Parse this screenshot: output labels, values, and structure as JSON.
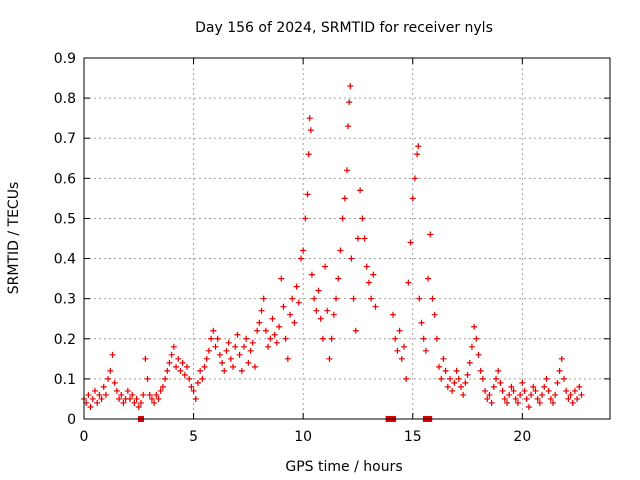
{
  "chart_data": {
    "type": "scatter",
    "title": "Day 156 of 2024, SRMTID for receiver nyls",
    "xlabel": "GPS time / hours",
    "ylabel": "SRMTID / TECUs",
    "xlim": [
      0,
      24
    ],
    "ylim": [
      0,
      0.9
    ],
    "xticks": [
      0,
      5,
      10,
      15,
      20
    ],
    "xtick_labels": [
      "0",
      "5",
      "10",
      "15",
      "20"
    ],
    "yticks": [
      0,
      0.1,
      0.2,
      0.3,
      0.4,
      0.5,
      0.6,
      0.7,
      0.8,
      0.9
    ],
    "ytick_labels": [
      "0",
      "0.1",
      "0.2",
      "0.3",
      "0.4",
      "0.5",
      "0.6",
      "0.7",
      "0.8",
      "0.9"
    ],
    "grid": true,
    "marker_color": "#e00000",
    "series": [
      {
        "name": "SRMTID",
        "marker": "plus",
        "points": [
          [
            0.0,
            0.05
          ],
          [
            0.1,
            0.04
          ],
          [
            0.2,
            0.06
          ],
          [
            0.3,
            0.03
          ],
          [
            0.4,
            0.05
          ],
          [
            0.5,
            0.07
          ],
          [
            0.6,
            0.04
          ],
          [
            0.7,
            0.06
          ],
          [
            0.8,
            0.05
          ],
          [
            0.9,
            0.08
          ],
          [
            1.0,
            0.06
          ],
          [
            1.1,
            0.1
          ],
          [
            1.2,
            0.12
          ],
          [
            1.3,
            0.16
          ],
          [
            1.4,
            0.09
          ],
          [
            1.5,
            0.07
          ],
          [
            1.6,
            0.05
          ],
          [
            1.7,
            0.06
          ],
          [
            1.8,
            0.04
          ],
          [
            1.9,
            0.05
          ],
          [
            2.0,
            0.07
          ],
          [
            2.1,
            0.05
          ],
          [
            2.2,
            0.06
          ],
          [
            2.3,
            0.04
          ],
          [
            2.4,
            0.05
          ],
          [
            2.5,
            0.03
          ],
          [
            2.6,
            0.04
          ],
          [
            2.7,
            0.06
          ],
          [
            2.8,
            0.15
          ],
          [
            2.9,
            0.1
          ],
          [
            3.0,
            0.06
          ],
          [
            3.1,
            0.05
          ],
          [
            3.2,
            0.04
          ],
          [
            3.3,
            0.06
          ],
          [
            3.4,
            0.05
          ],
          [
            3.5,
            0.07
          ],
          [
            3.6,
            0.08
          ],
          [
            3.7,
            0.1
          ],
          [
            3.8,
            0.12
          ],
          [
            3.9,
            0.14
          ],
          [
            4.0,
            0.16
          ],
          [
            4.1,
            0.18
          ],
          [
            4.2,
            0.13
          ],
          [
            4.3,
            0.15
          ],
          [
            4.4,
            0.12
          ],
          [
            4.5,
            0.14
          ],
          [
            4.6,
            0.11
          ],
          [
            4.7,
            0.13
          ],
          [
            4.8,
            0.1
          ],
          [
            4.9,
            0.08
          ],
          [
            5.0,
            0.07
          ],
          [
            5.1,
            0.05
          ],
          [
            5.2,
            0.09
          ],
          [
            5.3,
            0.12
          ],
          [
            5.4,
            0.1
          ],
          [
            5.5,
            0.13
          ],
          [
            5.6,
            0.15
          ],
          [
            5.7,
            0.17
          ],
          [
            5.8,
            0.2
          ],
          [
            5.9,
            0.22
          ],
          [
            6.0,
            0.18
          ],
          [
            6.1,
            0.2
          ],
          [
            6.2,
            0.16
          ],
          [
            6.3,
            0.14
          ],
          [
            6.4,
            0.12
          ],
          [
            6.5,
            0.17
          ],
          [
            6.6,
            0.19
          ],
          [
            6.7,
            0.15
          ],
          [
            6.8,
            0.13
          ],
          [
            6.9,
            0.18
          ],
          [
            7.0,
            0.21
          ],
          [
            7.1,
            0.16
          ],
          [
            7.2,
            0.12
          ],
          [
            7.3,
            0.18
          ],
          [
            7.4,
            0.2
          ],
          [
            7.5,
            0.14
          ],
          [
            7.6,
            0.17
          ],
          [
            7.7,
            0.19
          ],
          [
            7.8,
            0.13
          ],
          [
            7.9,
            0.22
          ],
          [
            8.0,
            0.24
          ],
          [
            8.1,
            0.27
          ],
          [
            8.2,
            0.3
          ],
          [
            8.3,
            0.22
          ],
          [
            8.4,
            0.18
          ],
          [
            8.5,
            0.2
          ],
          [
            8.6,
            0.25
          ],
          [
            8.7,
            0.21
          ],
          [
            8.8,
            0.19
          ],
          [
            8.9,
            0.23
          ],
          [
            9.0,
            0.35
          ],
          [
            9.1,
            0.28
          ],
          [
            9.2,
            0.2
          ],
          [
            9.3,
            0.15
          ],
          [
            9.4,
            0.26
          ],
          [
            9.5,
            0.3
          ],
          [
            9.6,
            0.24
          ],
          [
            9.7,
            0.33
          ],
          [
            9.8,
            0.29
          ],
          [
            9.9,
            0.4
          ],
          [
            10.0,
            0.42
          ],
          [
            10.1,
            0.5
          ],
          [
            10.2,
            0.56
          ],
          [
            10.25,
            0.66
          ],
          [
            10.3,
            0.75
          ],
          [
            10.35,
            0.72
          ],
          [
            10.4,
            0.36
          ],
          [
            10.5,
            0.3
          ],
          [
            10.6,
            0.27
          ],
          [
            10.7,
            0.32
          ],
          [
            10.8,
            0.25
          ],
          [
            10.9,
            0.2
          ],
          [
            11.0,
            0.38
          ],
          [
            11.1,
            0.27
          ],
          [
            11.2,
            0.15
          ],
          [
            11.3,
            0.2
          ],
          [
            11.4,
            0.26
          ],
          [
            11.5,
            0.3
          ],
          [
            11.6,
            0.35
          ],
          [
            11.7,
            0.42
          ],
          [
            11.8,
            0.5
          ],
          [
            11.9,
            0.55
          ],
          [
            12.0,
            0.62
          ],
          [
            12.05,
            0.73
          ],
          [
            12.1,
            0.79
          ],
          [
            12.15,
            0.83
          ],
          [
            12.2,
            0.4
          ],
          [
            12.3,
            0.3
          ],
          [
            12.4,
            0.22
          ],
          [
            12.5,
            0.45
          ],
          [
            12.6,
            0.57
          ],
          [
            12.7,
            0.5
          ],
          [
            12.8,
            0.45
          ],
          [
            12.9,
            0.38
          ],
          [
            13.0,
            0.34
          ],
          [
            13.1,
            0.3
          ],
          [
            13.2,
            0.36
          ],
          [
            13.3,
            0.28
          ],
          [
            14.1,
            0.26
          ],
          [
            14.2,
            0.2
          ],
          [
            14.3,
            0.17
          ],
          [
            14.4,
            0.22
          ],
          [
            14.5,
            0.15
          ],
          [
            14.6,
            0.18
          ],
          [
            14.7,
            0.1
          ],
          [
            14.8,
            0.34
          ],
          [
            14.9,
            0.44
          ],
          [
            15.0,
            0.55
          ],
          [
            15.1,
            0.6
          ],
          [
            15.2,
            0.66
          ],
          [
            15.25,
            0.68
          ],
          [
            15.3,
            0.3
          ],
          [
            15.4,
            0.24
          ],
          [
            15.5,
            0.2
          ],
          [
            15.6,
            0.17
          ],
          [
            15.7,
            0.35
          ],
          [
            15.8,
            0.46
          ],
          [
            15.9,
            0.3
          ],
          [
            16.0,
            0.26
          ],
          [
            16.1,
            0.2
          ],
          [
            16.2,
            0.13
          ],
          [
            16.3,
            0.1
          ],
          [
            16.4,
            0.15
          ],
          [
            16.5,
            0.12
          ],
          [
            16.6,
            0.08
          ],
          [
            16.7,
            0.1
          ],
          [
            16.8,
            0.07
          ],
          [
            16.9,
            0.09
          ],
          [
            17.0,
            0.12
          ],
          [
            17.1,
            0.1
          ],
          [
            17.2,
            0.08
          ],
          [
            17.3,
            0.06
          ],
          [
            17.4,
            0.09
          ],
          [
            17.5,
            0.11
          ],
          [
            17.6,
            0.14
          ],
          [
            17.7,
            0.18
          ],
          [
            17.8,
            0.23
          ],
          [
            17.9,
            0.2
          ],
          [
            18.0,
            0.16
          ],
          [
            18.1,
            0.12
          ],
          [
            18.2,
            0.1
          ],
          [
            18.3,
            0.07
          ],
          [
            18.4,
            0.05
          ],
          [
            18.5,
            0.06
          ],
          [
            18.6,
            0.04
          ],
          [
            18.7,
            0.08
          ],
          [
            18.8,
            0.1
          ],
          [
            18.9,
            0.12
          ],
          [
            19.0,
            0.09
          ],
          [
            19.1,
            0.07
          ],
          [
            19.2,
            0.05
          ],
          [
            19.3,
            0.04
          ],
          [
            19.4,
            0.06
          ],
          [
            19.5,
            0.08
          ],
          [
            19.6,
            0.07
          ],
          [
            19.7,
            0.05
          ],
          [
            19.8,
            0.04
          ],
          [
            19.9,
            0.06
          ],
          [
            20.0,
            0.09
          ],
          [
            20.1,
            0.07
          ],
          [
            20.2,
            0.05
          ],
          [
            20.3,
            0.03
          ],
          [
            20.4,
            0.06
          ],
          [
            20.5,
            0.08
          ],
          [
            20.6,
            0.07
          ],
          [
            20.7,
            0.05
          ],
          [
            20.8,
            0.04
          ],
          [
            20.9,
            0.06
          ],
          [
            21.0,
            0.08
          ],
          [
            21.1,
            0.1
          ],
          [
            21.2,
            0.07
          ],
          [
            21.3,
            0.05
          ],
          [
            21.4,
            0.04
          ],
          [
            21.5,
            0.06
          ],
          [
            21.6,
            0.09
          ],
          [
            21.7,
            0.12
          ],
          [
            21.8,
            0.15
          ],
          [
            21.9,
            0.1
          ],
          [
            22.0,
            0.07
          ],
          [
            22.1,
            0.05
          ],
          [
            22.2,
            0.06
          ],
          [
            22.3,
            0.04
          ],
          [
            22.4,
            0.07
          ],
          [
            22.5,
            0.05
          ],
          [
            22.6,
            0.08
          ],
          [
            22.7,
            0.06
          ]
        ]
      },
      {
        "name": "data-gap-markers",
        "marker": "square",
        "points": [
          [
            2.6,
            0
          ],
          [
            13.9,
            0
          ],
          [
            14.1,
            0
          ],
          [
            15.6,
            0
          ],
          [
            15.75,
            0
          ]
        ]
      }
    ]
  }
}
